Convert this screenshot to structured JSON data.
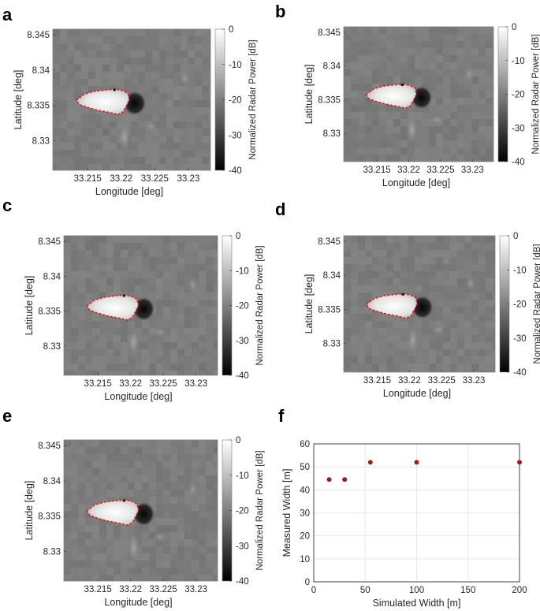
{
  "panels": {
    "a": {
      "letter": "a"
    },
    "b": {
      "letter": "b"
    },
    "c": {
      "letter": "c"
    },
    "d": {
      "letter": "d"
    },
    "e": {
      "letter": "e"
    },
    "f": {
      "letter": "f"
    }
  },
  "radar_maps": {
    "xlabel": "Longitude [deg]",
    "ylabel": "Latitude [deg]",
    "colorbar_label": "Normalized Radar Power [dB]",
    "x_ticks": [
      "33.215",
      "33.22",
      "33.225",
      "33.23"
    ],
    "y_ticks": [
      "8.345",
      "8.34",
      "8.335",
      "8.33"
    ],
    "colorbar_ticks": [
      "0",
      "-10",
      "-20",
      "-30",
      "-40"
    ],
    "colors": {
      "outline": "#d62020",
      "background": "#7a7a7a",
      "bright": "#f4f4f4",
      "dark": "#101010"
    }
  },
  "chart_data": {
    "type": "scatter",
    "xlabel": "Simulated Width [m]",
    "ylabel": "Measured Width [m]",
    "xlim": [
      0,
      200
    ],
    "ylim": [
      0,
      60
    ],
    "x_ticks": [
      "0",
      "50",
      "100",
      "150",
      "200"
    ],
    "y_ticks": [
      "0",
      "10",
      "20",
      "30",
      "40",
      "50",
      "60"
    ],
    "grid": true,
    "marker_color": "#a11c1c",
    "points": [
      {
        "x": 15,
        "y": 44.5
      },
      {
        "x": 30,
        "y": 44.5
      },
      {
        "x": 55,
        "y": 52
      },
      {
        "x": 100,
        "y": 52
      },
      {
        "x": 200,
        "y": 52
      }
    ]
  }
}
